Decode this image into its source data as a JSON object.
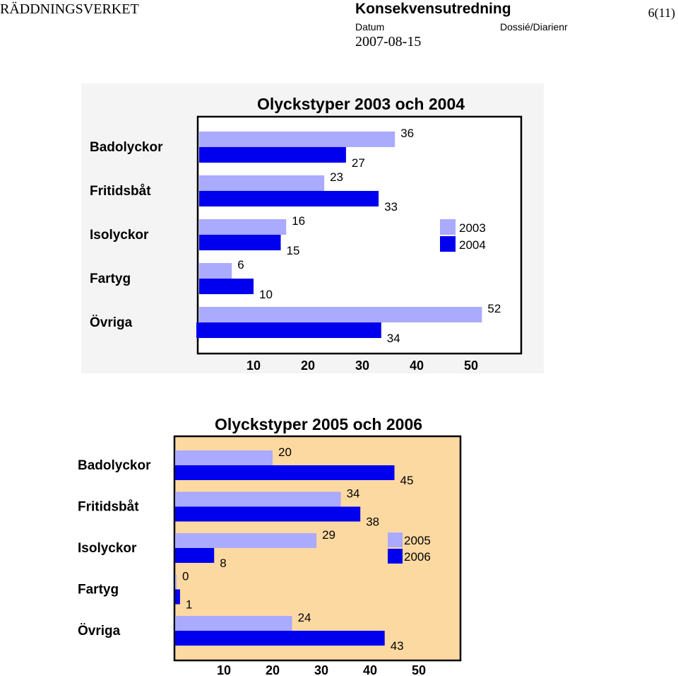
{
  "header": {
    "org": "RÄDDNINGSVERKET",
    "title": "Konsekvensutredning",
    "datum_label": "Datum",
    "dossier_label": "Dossié/Diarienr",
    "date": "2007-08-15",
    "page": "6(11)"
  },
  "colors": {
    "light": "#aaaaff",
    "dark": "#0000ee",
    "chart2_bg": "#fdd9a2"
  },
  "chart_data": [
    {
      "type": "bar",
      "orientation": "horizontal",
      "title": "Olyckstyper 2003 och 2004",
      "categories": [
        "Badolyckor",
        "Fritidsbåt",
        "Isolyckor",
        "Fartyg",
        "Övriga"
      ],
      "series": [
        {
          "name": "2003",
          "values": [
            36,
            23,
            16,
            6,
            52
          ]
        },
        {
          "name": "2004",
          "values": [
            27,
            33,
            15,
            10,
            34
          ]
        }
      ],
      "xticks": [
        "10",
        "20",
        "30",
        "40",
        "50"
      ],
      "xlim": [
        0,
        58
      ],
      "legend": "right",
      "grid": false
    },
    {
      "type": "bar",
      "orientation": "horizontal",
      "title": "Olyckstyper 2005 och 2006",
      "categories": [
        "Badolyckor",
        "Fritidsbåt",
        "Isolyckor",
        "Fartyg",
        "Övriga"
      ],
      "series": [
        {
          "name": "2005",
          "values": [
            20,
            34,
            29,
            0,
            24
          ]
        },
        {
          "name": "2006",
          "values": [
            45,
            38,
            8,
            1,
            43
          ]
        }
      ],
      "xticks": [
        "10",
        "20",
        "30",
        "40",
        "50"
      ],
      "xlim": [
        0,
        58
      ],
      "legend": "right",
      "grid": false
    }
  ]
}
